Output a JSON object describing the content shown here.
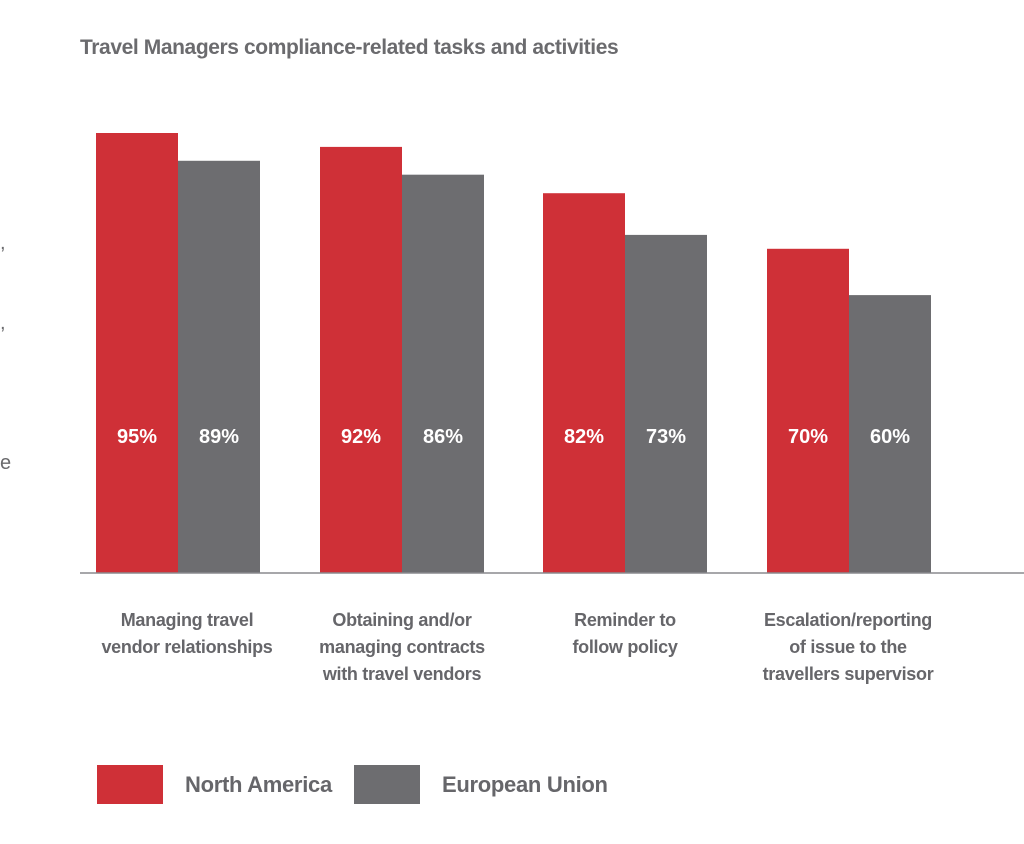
{
  "chart_data": {
    "type": "bar",
    "title": "Travel Managers compliance-related tasks and activities",
    "categories": [
      [
        "Managing travel",
        "vendor relationships"
      ],
      [
        "Obtaining and/or",
        "managing contracts",
        "with travel vendors"
      ],
      [
        "Reminder to",
        "follow policy"
      ],
      [
        "Escalation/reporting",
        "of issue to the",
        "travellers supervisor"
      ]
    ],
    "series": [
      {
        "name": "North America",
        "values": [
          95,
          92,
          82,
          70
        ],
        "labels": [
          "95%",
          "92%",
          "82%",
          "70%"
        ],
        "color": "#cf3037"
      },
      {
        "name": "European Union",
        "values": [
          89,
          86,
          73,
          60
        ],
        "labels": [
          "89%",
          "86%",
          "73%",
          "60%"
        ],
        "color": "#6d6d70"
      }
    ],
    "ylim": [
      0,
      100
    ],
    "grid": false,
    "legend": "bottom-left"
  },
  "edge_fragments": [
    ",",
    ",",
    "e"
  ]
}
